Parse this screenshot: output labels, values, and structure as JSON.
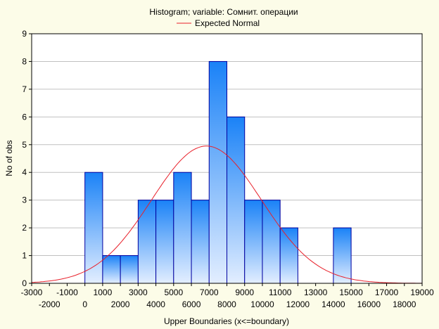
{
  "chart_data": {
    "type": "bar",
    "title": "Histogram; variable: Сомнит. операции",
    "xlabel": "Upper Boundaries (x<=boundary)",
    "ylabel": "No of obs",
    "legend": {
      "label": "Expected Normal",
      "placement": "top-center"
    },
    "xlim": [
      -3000,
      19000
    ],
    "ylim": [
      0,
      9
    ],
    "grid": true,
    "bin_width": 1000,
    "bins": [
      {
        "lower": 0,
        "upper": 1000,
        "count": 4
      },
      {
        "lower": 1000,
        "upper": 2000,
        "count": 1
      },
      {
        "lower": 2000,
        "upper": 3000,
        "count": 1
      },
      {
        "lower": 3000,
        "upper": 4000,
        "count": 3
      },
      {
        "lower": 4000,
        "upper": 5000,
        "count": 3
      },
      {
        "lower": 5000,
        "upper": 6000,
        "count": 4
      },
      {
        "lower": 6000,
        "upper": 7000,
        "count": 3
      },
      {
        "lower": 7000,
        "upper": 8000,
        "count": 8
      },
      {
        "lower": 8000,
        "upper": 9000,
        "count": 6
      },
      {
        "lower": 9000,
        "upper": 10000,
        "count": 3
      },
      {
        "lower": 10000,
        "upper": 11000,
        "count": 3
      },
      {
        "lower": 11000,
        "upper": 12000,
        "count": 2
      },
      {
        "lower": 14000,
        "upper": 15000,
        "count": 2
      }
    ],
    "normal_curve": {
      "mean": 6850,
      "sd": 3100,
      "peak": 4.95
    },
    "x_ticks_upper": [
      "-3000",
      "-1000",
      "1000",
      "3000",
      "5000",
      "7000",
      "9000",
      "11000",
      "13000",
      "15000",
      "17000",
      "19000"
    ],
    "x_ticks_lower": [
      "-2000",
      "0",
      "2000",
      "4000",
      "6000",
      "8000",
      "10000",
      "12000",
      "14000",
      "16000",
      "18000"
    ],
    "y_ticks": [
      "0",
      "1",
      "2",
      "3",
      "4",
      "5",
      "6",
      "7",
      "8",
      "9"
    ],
    "colors": {
      "background": "#fcfce8",
      "plot_background": "#ffffff",
      "bar_top": "#1a82f7",
      "bar_bottom": "#e3eeff",
      "bar_edge": "#0000a0",
      "curve": "#e8202a",
      "grid": "#c0c0c0"
    }
  }
}
